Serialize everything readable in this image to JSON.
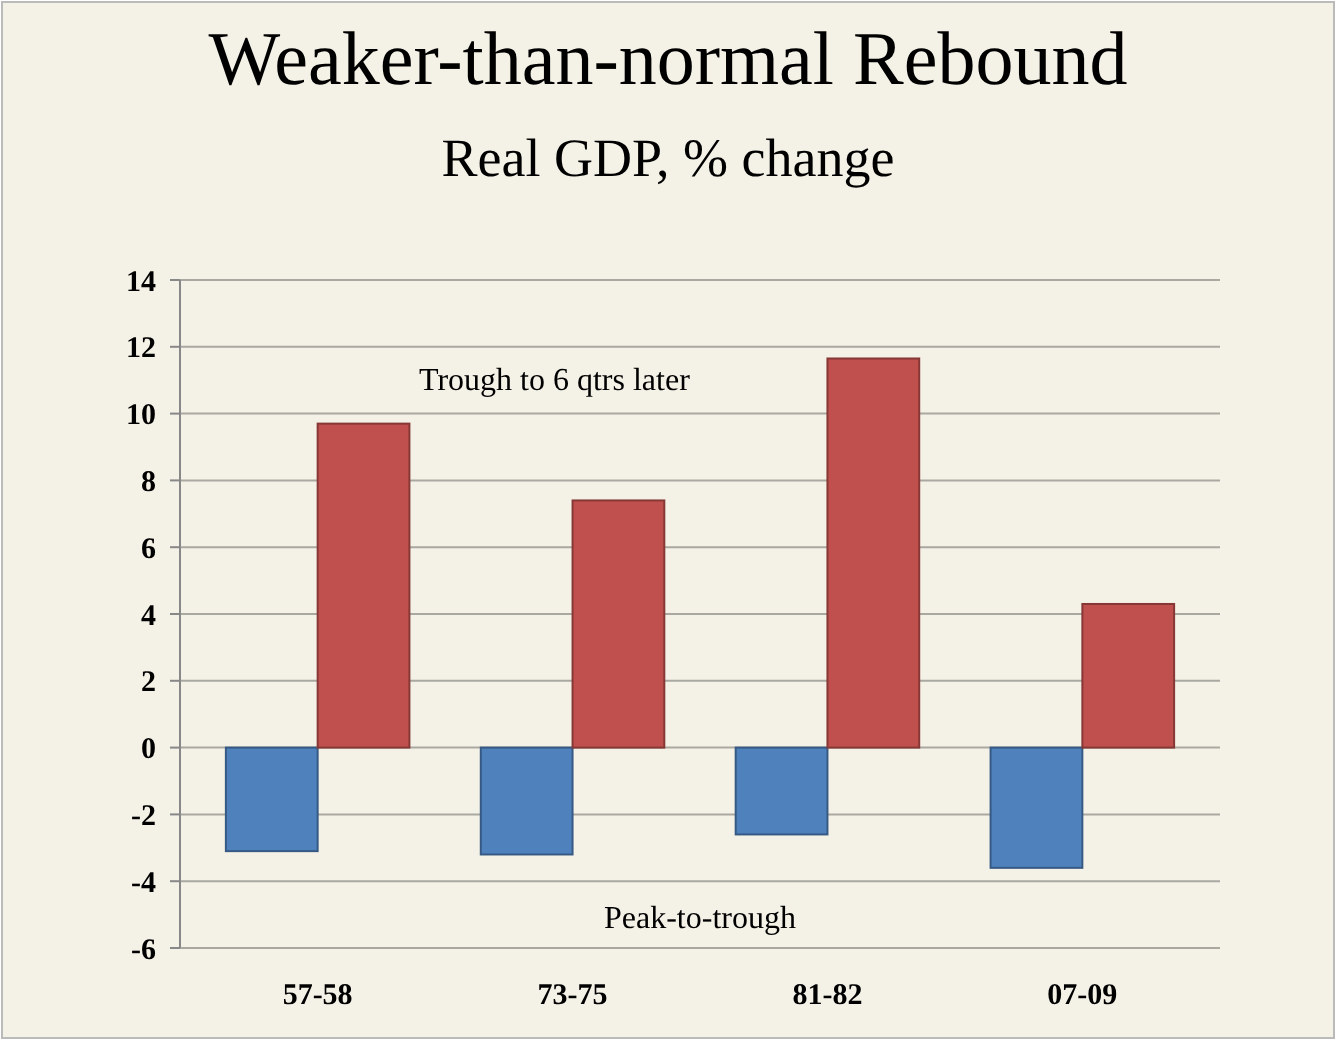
{
  "chart_data": {
    "type": "bar",
    "title": "Weaker-than-normal Rebound",
    "subtitle": "Real GDP, % change",
    "categories": [
      "57-58",
      "73-75",
      "81-82",
      "07-09"
    ],
    "series": [
      {
        "name": "Peak-to-trough",
        "color": "#4f81bd",
        "values": [
          -3.1,
          -3.2,
          -2.6,
          -3.6
        ]
      },
      {
        "name": "Trough to 6 qtrs later",
        "color": "#c0504d",
        "values": [
          9.7,
          7.4,
          11.65,
          4.3
        ]
      }
    ],
    "ylim": [
      -6,
      14
    ],
    "yticks": [
      -6,
      -4,
      -2,
      0,
      2,
      4,
      6,
      8,
      10,
      12,
      14
    ],
    "grid": "y",
    "legend": false
  }
}
